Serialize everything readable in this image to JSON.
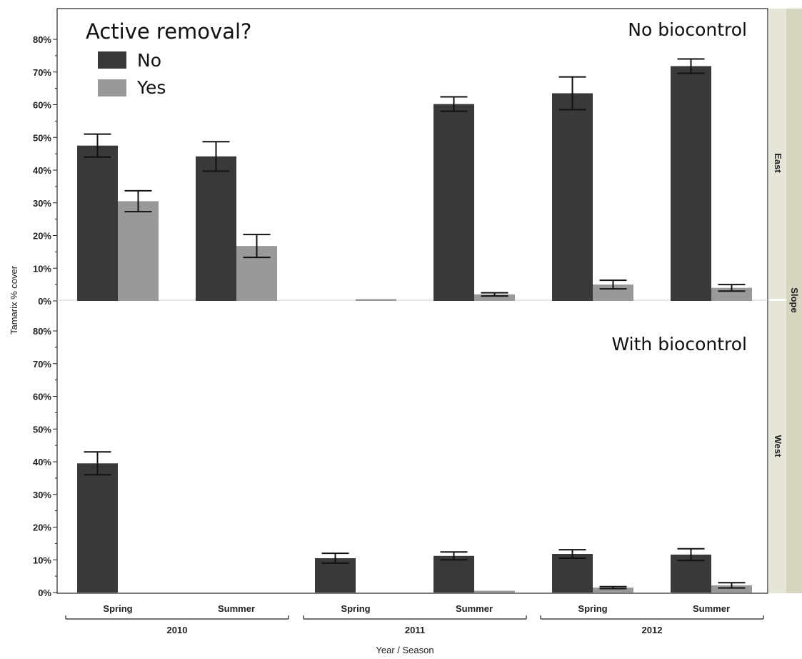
{
  "chart_data": {
    "type": "bar",
    "xlabel": "Year / Season",
    "ylabel": "Tamarix % cover",
    "ylim": [
      0,
      85
    ],
    "y_ticks": [
      "0%",
      "10%",
      "20%",
      "30%",
      "40%",
      "50%",
      "60%",
      "70%",
      "80%"
    ],
    "categories": [
      "Spring",
      "Summer",
      "Spring",
      "Summer",
      "Spring",
      "Summer"
    ],
    "years": [
      {
        "label": "2010",
        "span": [
          0,
          1
        ]
      },
      {
        "label": "2011",
        "span": [
          2,
          3
        ]
      },
      {
        "label": "2012",
        "span": [
          4,
          5
        ]
      }
    ],
    "legend": {
      "title": "Active removal?",
      "placement": "top-left",
      "entries": [
        {
          "label": "No",
          "color": "#393939"
        },
        {
          "label": "Yes",
          "color": "#999999"
        }
      ]
    },
    "facet_title": "Slope",
    "panels": [
      {
        "strip": "East",
        "label": "No biocontrol",
        "series": [
          {
            "name": "No",
            "color": "#393939",
            "values": [
              47.5,
              44.2,
              null,
              60.2,
              63.5,
              71.8
            ],
            "errors": [
              3.5,
              4.5,
              null,
              2.2,
              5.0,
              2.2
            ]
          },
          {
            "name": "Yes",
            "color": "#999999",
            "values": [
              30.5,
              16.8,
              0.5,
              2.0,
              5.0,
              4.0
            ],
            "errors": [
              3.2,
              3.5,
              null,
              0.5,
              1.3,
              1.0
            ]
          }
        ]
      },
      {
        "strip": "West",
        "label": "With biocontrol",
        "series": [
          {
            "name": "No",
            "color": "#393939",
            "values": [
              39.5,
              null,
              10.5,
              11.2,
              11.8,
              11.6
            ],
            "errors": [
              3.5,
              null,
              1.5,
              1.2,
              1.3,
              1.8
            ]
          },
          {
            "name": "Yes",
            "color": "#999999",
            "values": [
              null,
              null,
              null,
              0.2,
              1.5,
              2.2
            ],
            "errors": [
              null,
              null,
              null,
              null,
              0.3,
              0.8
            ]
          }
        ]
      }
    ]
  }
}
